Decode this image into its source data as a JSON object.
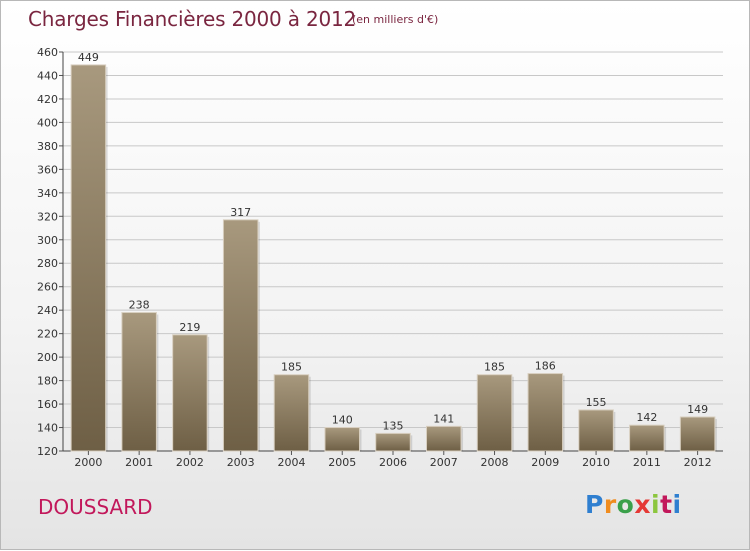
{
  "header": {
    "title": "Charges Financières 2000 à 2012",
    "subtitle": "(en milliers d'€)"
  },
  "footer": {
    "commune": "DOUSSARD",
    "logo_text": "Proxiti",
    "logo_colors": [
      "#2f7fd0",
      "#f08c1e",
      "#3aa04a",
      "#e53935",
      "#8cc63e",
      "#c2185b",
      "#2f7fd0"
    ]
  },
  "colors": {
    "bar_light": "#a8997e",
    "bar_dark": "#6e5f45",
    "title": "#7a2640",
    "commune": "#c2185b",
    "grid": "#c8c8c8"
  },
  "chart_data": {
    "type": "bar",
    "title": "Charges Financières 2000 à 2012",
    "subtitle": "(en milliers d'€)",
    "categories": [
      "2000",
      "2001",
      "2002",
      "2003",
      "2004",
      "2005",
      "2006",
      "2007",
      "2008",
      "2009",
      "2010",
      "2011",
      "2012"
    ],
    "values": [
      449,
      238,
      219,
      317,
      185,
      140,
      135,
      141,
      185,
      186,
      155,
      142,
      149
    ],
    "ylim": [
      120,
      460
    ],
    "yticks": [
      120,
      140,
      160,
      180,
      200,
      220,
      240,
      260,
      280,
      300,
      320,
      340,
      360,
      380,
      400,
      420,
      440,
      460
    ],
    "grid": true,
    "xlabel": "",
    "ylabel": ""
  }
}
